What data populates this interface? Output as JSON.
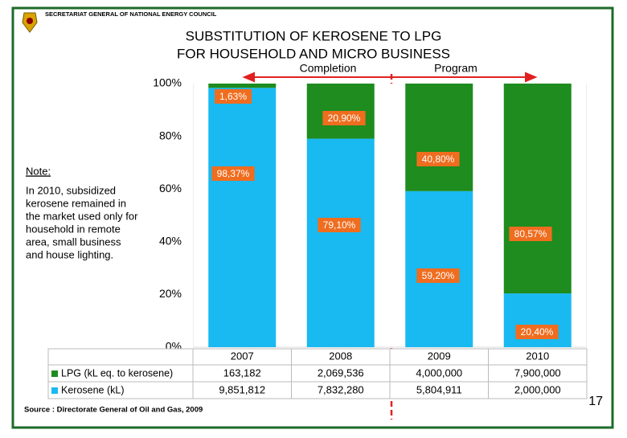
{
  "header": {
    "organization": "SECRETARIAT GENERAL OF NATIONAL ENERGY COUNCIL",
    "page_number": "17"
  },
  "chart_data": {
    "type": "stacked_bar",
    "title": [
      "SUBSTITUTION OF KEROSENE TO LPG",
      "FOR HOUSEHOLD AND MICRO BUSINESS"
    ],
    "annotations": [
      "Completion",
      "Program"
    ],
    "categories": [
      "2007",
      "2008",
      "2009",
      "2010"
    ],
    "series": [
      {
        "name": "LPG (kL eq. to kerosene)",
        "color": "#1e8c1e",
        "values": [
          1.63,
          20.9,
          40.8,
          80.57
        ],
        "value_labels": [
          "1,63%",
          "20,90%",
          "40,80%",
          "80,57%"
        ],
        "amounts": [
          "163,182",
          "2,069,536",
          "4,000,000",
          "7,900,000"
        ]
      },
      {
        "name": "Kerosene (kL)",
        "color": "#19b9f1",
        "values": [
          98.37,
          79.1,
          59.2,
          20.4
        ],
        "value_labels": [
          "98,37%",
          "79,10%",
          "59,20%",
          "20,40%"
        ],
        "amounts": [
          "9,851,812",
          "7,832,280",
          "5,804,911",
          "2,000,000"
        ]
      }
    ],
    "label_color": "#ef6d1f",
    "ylim": [
      0,
      100
    ],
    "yticks": [
      {
        "value": 0,
        "label": "0%"
      },
      {
        "value": 20,
        "label": "20%"
      },
      {
        "value": 40,
        "label": "40%"
      },
      {
        "value": 60,
        "label": "60%"
      },
      {
        "value": 80,
        "label": "80%"
      },
      {
        "value": 100,
        "label": "100%"
      }
    ],
    "grid": false,
    "note": {
      "title": "Note:",
      "lines": [
        "In 2010, subsidized",
        "kerosene remained in",
        "the market used only for",
        "household in remote",
        "area, small business",
        "and house lighting."
      ]
    },
    "source": "Source : Directorate General of Oil and Gas, 2009"
  }
}
